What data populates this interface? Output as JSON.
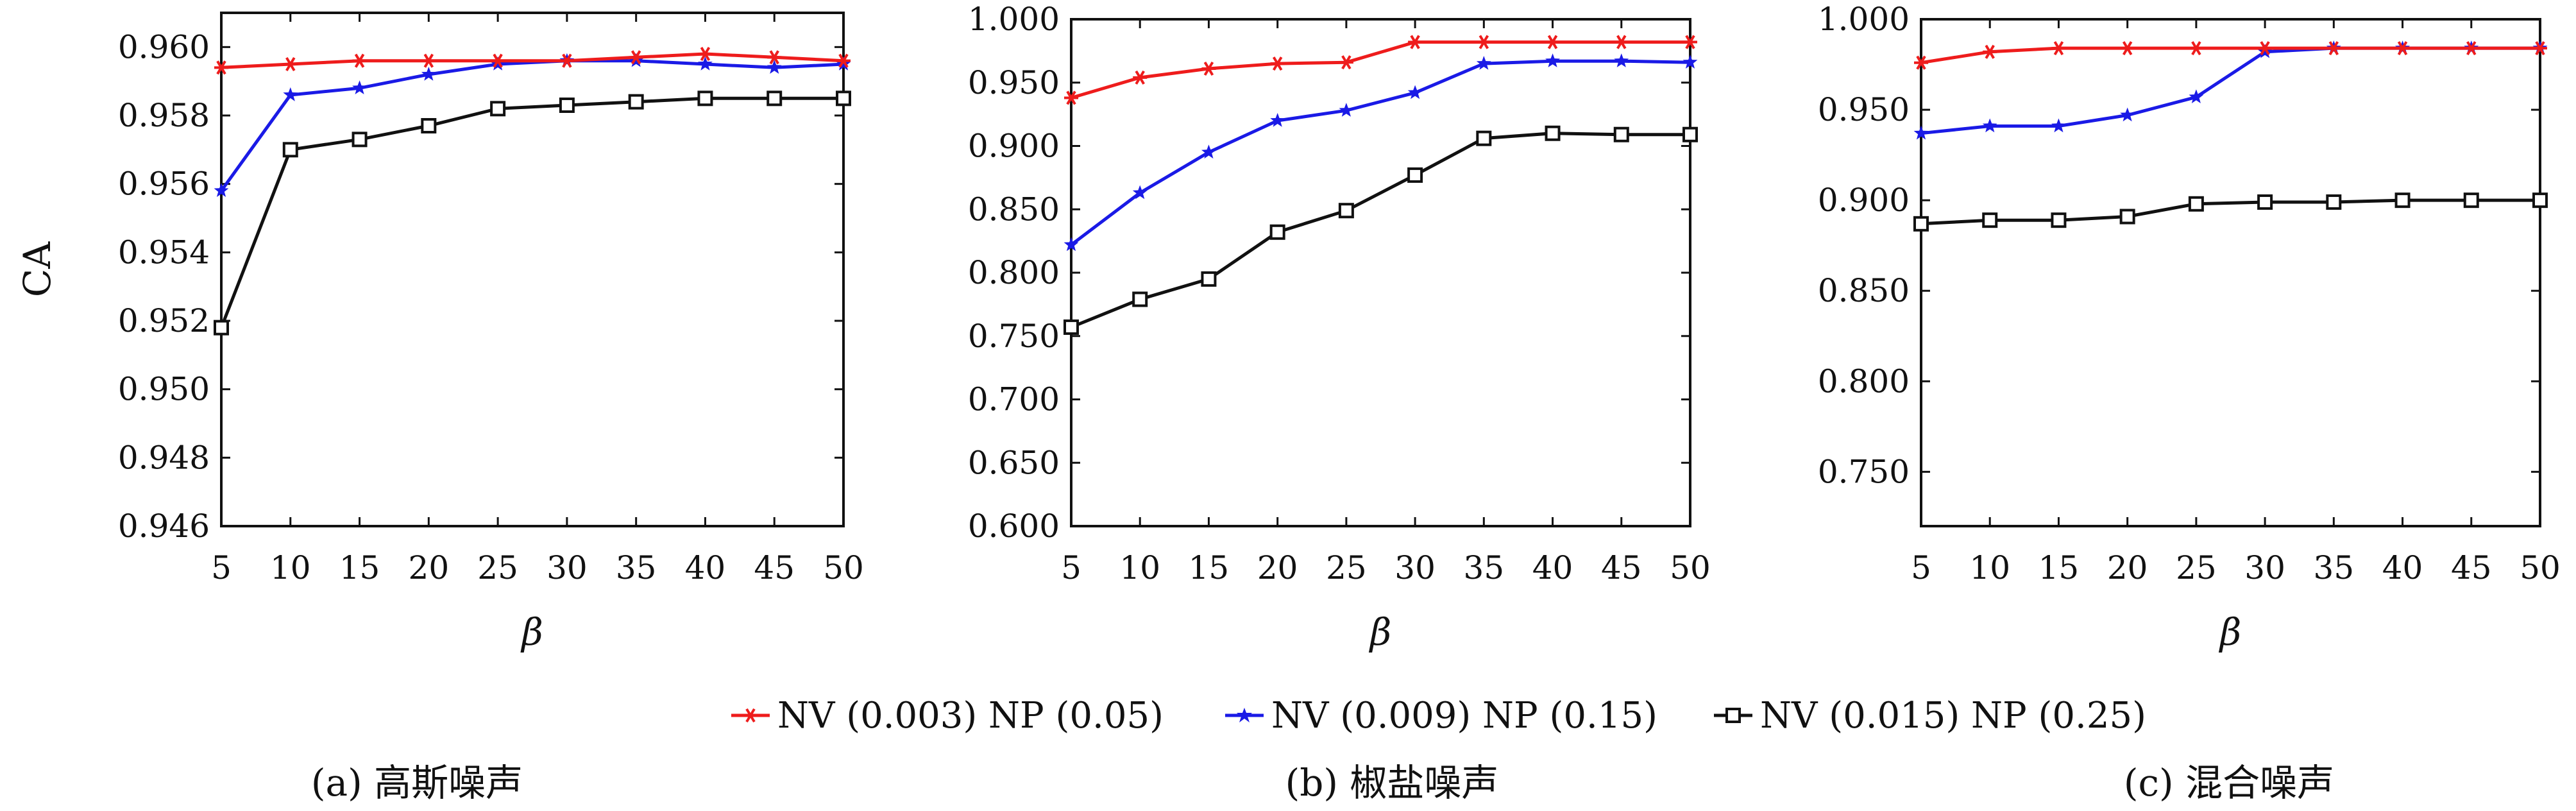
{
  "chart_data": [
    {
      "type": "line",
      "caption": "(a) 高斯噪声",
      "xlabel": "β",
      "ylabel": "CA",
      "x": [
        5,
        10,
        15,
        20,
        25,
        30,
        35,
        40,
        45,
        50
      ],
      "x_ticks": [
        "5",
        "10",
        "15",
        "20",
        "25",
        "30",
        "35",
        "40",
        "45",
        "50"
      ],
      "ylim": [
        0.946,
        0.961
      ],
      "y_ticks": [
        "0.946",
        "0.948",
        "0.950",
        "0.952",
        "0.954",
        "0.956",
        "0.958",
        "0.960"
      ],
      "series": [
        {
          "name": "NV (0.003) NP (0.05)",
          "values": [
            0.9594,
            0.9595,
            0.9596,
            0.9596,
            0.9596,
            0.9596,
            0.9597,
            0.9598,
            0.9597,
            0.9596
          ]
        },
        {
          "name": "NV (0.009) NP (0.15)",
          "values": [
            0.9558,
            0.9586,
            0.9588,
            0.9592,
            0.9595,
            0.9596,
            0.9596,
            0.9595,
            0.9594,
            0.9595
          ]
        },
        {
          "name": "NV (0.015) NP (0.25)",
          "values": [
            0.9518,
            0.957,
            0.9573,
            0.9577,
            0.9582,
            0.9583,
            0.9584,
            0.9585,
            0.9585,
            0.9585
          ]
        }
      ]
    },
    {
      "type": "line",
      "caption": "(b) 椒盐噪声",
      "xlabel": "β",
      "ylabel": "",
      "x": [
        5,
        10,
        15,
        20,
        25,
        30,
        35,
        40,
        45,
        50
      ],
      "x_ticks": [
        "5",
        "10",
        "15",
        "20",
        "25",
        "30",
        "35",
        "40",
        "45",
        "50"
      ],
      "ylim": [
        0.6,
        1.0
      ],
      "y_ticks": [
        "0.600",
        "0.650",
        "0.700",
        "0.750",
        "0.800",
        "0.850",
        "0.900",
        "0.950",
        "1.000"
      ],
      "series": [
        {
          "name": "NV (0.003) NP (0.05)",
          "values": [
            0.938,
            0.954,
            0.961,
            0.965,
            0.966,
            0.982,
            0.982,
            0.982,
            0.982,
            0.982
          ]
        },
        {
          "name": "NV (0.009) NP (0.15)",
          "values": [
            0.822,
            0.863,
            0.895,
            0.92,
            0.928,
            0.942,
            0.965,
            0.967,
            0.967,
            0.966
          ]
        },
        {
          "name": "NV (0.015) NP (0.25)",
          "values": [
            0.757,
            0.779,
            0.795,
            0.832,
            0.849,
            0.877,
            0.906,
            0.91,
            0.909,
            0.909
          ]
        }
      ]
    },
    {
      "type": "line",
      "caption": "(c) 混合噪声",
      "xlabel": "β",
      "ylabel": "",
      "x": [
        5,
        10,
        15,
        20,
        25,
        30,
        35,
        40,
        45,
        50
      ],
      "x_ticks": [
        "5",
        "10",
        "15",
        "20",
        "25",
        "30",
        "35",
        "40",
        "45",
        "50"
      ],
      "ylim": [
        0.72,
        1.0
      ],
      "y_ticks": [
        "0.750",
        "0.800",
        "0.850",
        "0.900",
        "0.950",
        "1.000"
      ],
      "series": [
        {
          "name": "NV (0.003) NP (0.05)",
          "values": [
            0.976,
            0.982,
            0.984,
            0.984,
            0.984,
            0.984,
            0.984,
            0.984,
            0.984,
            0.984
          ]
        },
        {
          "name": "NV (0.009) NP (0.15)",
          "values": [
            0.937,
            0.941,
            0.941,
            0.947,
            0.957,
            0.982,
            0.984,
            0.984,
            0.984,
            0.984
          ]
        },
        {
          "name": "NV (0.015) NP (0.25)",
          "values": [
            0.887,
            0.889,
            0.889,
            0.891,
            0.898,
            0.899,
            0.899,
            0.9,
            0.9,
            0.9
          ]
        }
      ]
    }
  ],
  "legend": {
    "placement": "bottom-center",
    "items": [
      {
        "label": "NV (0.003) NP (0.05)",
        "color": "#ee1c1c",
        "marker": "asterisk-icon"
      },
      {
        "label": "NV (0.009) NP (0.15)",
        "color": "#1a1ae6",
        "marker": "star-icon"
      },
      {
        "label": "NV (0.015) NP (0.25)",
        "color": "#111111",
        "marker": "square-icon"
      }
    ]
  },
  "series_colors": [
    "#ee1c1c",
    "#1a1ae6",
    "#111111"
  ]
}
